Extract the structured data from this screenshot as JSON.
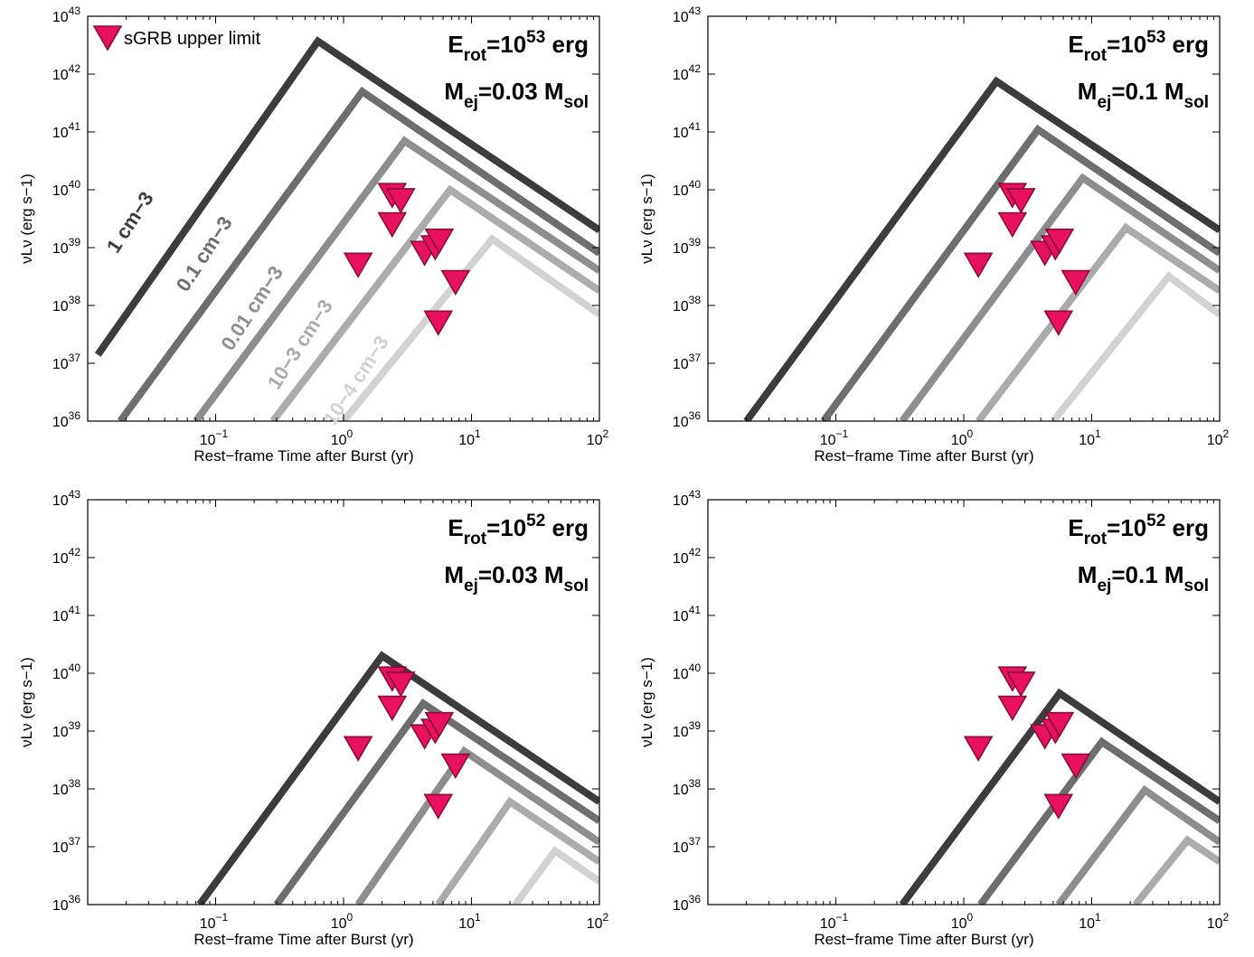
{
  "chart_data": [
    {
      "type": "line",
      "xlabel": "Rest−frame Time after Burst (yr)",
      "ylabel": "νLν (erg s−1)",
      "xscale": "log",
      "yscale": "log",
      "xlim": [
        0.01,
        100
      ],
      "ylim": [
        1e+36,
        1e+43
      ],
      "x_ticks": [
        "10−1",
        "100",
        "101",
        "102"
      ],
      "y_ticks": [
        "1036",
        "1037",
        "1038",
        "1039",
        "1040",
        "1041",
        "1042",
        "1043"
      ],
      "annotation_1": "Erot=1053 erg",
      "annotation_2": "Mej=0.03 Msol",
      "legend": {
        "label": "sGRB upper limit",
        "position": "top-left"
      },
      "series": [
        {
          "name": "1 cm−3",
          "color": "#3c3c3c",
          "x": [
            0.012,
            0.63,
            100
          ],
          "y": [
            1.4e+37,
            3.7e+42,
            2e+39
          ]
        },
        {
          "name": "0.1 cm−3",
          "color": "#6e6e6e",
          "x": [
            0.018,
            1.4,
            100
          ],
          "y": [
            1e+36,
            5e+41,
            8e+38
          ]
        },
        {
          "name": "0.01 cm−3",
          "color": "#8e8e8e",
          "x": [
            0.07,
            3.0,
            100
          ],
          "y": [
            1e+36,
            7e+40,
            4e+38
          ]
        },
        {
          "name": "10−3 cm−3",
          "color": "#ababab",
          "x": [
            0.28,
            6.8,
            100
          ],
          "y": [
            1e+36,
            1e+40,
            1.8e+38
          ]
        },
        {
          "name": "10−4 cm−3",
          "color": "#d2d2d2",
          "x": [
            1.0,
            14.5,
            100
          ],
          "y": [
            1e+36,
            1.4e+39,
            7e+37
          ]
        }
      ],
      "upper_limits": {
        "color": "#e8115f",
        "x": [
          1.3,
          2.4,
          2.8,
          2.4,
          4.3,
          5.2,
          5.6,
          7.5,
          5.5
        ],
        "y": [
          5e+38,
          8e+39,
          6.5e+39,
          2.5e+39,
          8e+38,
          1e+39,
          1.3e+39,
          2.5e+38,
          5e+37
        ]
      }
    },
    {
      "type": "line",
      "xlabel": "Rest−frame Time after Burst (yr)",
      "ylabel": "νLν (erg s−1)",
      "xscale": "log",
      "yscale": "log",
      "xlim": [
        0.01,
        100
      ],
      "ylim": [
        1e+36,
        1e+43
      ],
      "x_ticks": [
        "10−1",
        "100",
        "101",
        "102"
      ],
      "y_ticks": [
        "1036",
        "1037",
        "1038",
        "1039",
        "1040",
        "1041",
        "1042",
        "1043"
      ],
      "annotation_1": "Erot=1053 erg",
      "annotation_2": "Mej=0.1 Msol",
      "series": [
        {
          "color": "#3c3c3c",
          "x": [
            0.02,
            1.8,
            100
          ],
          "y": [
            1e+36,
            7.5e+41,
            2e+39
          ]
        },
        {
          "color": "#6e6e6e",
          "x": [
            0.08,
            3.8,
            100
          ],
          "y": [
            1e+36,
            1.1e+41,
            8e+38
          ]
        },
        {
          "color": "#8e8e8e",
          "x": [
            0.33,
            8.5,
            100
          ],
          "y": [
            1e+36,
            1.6e+40,
            4e+38
          ]
        },
        {
          "color": "#ababab",
          "x": [
            1.3,
            18.5,
            100
          ],
          "y": [
            1e+36,
            2.2e+39,
            1.8e+38
          ]
        },
        {
          "color": "#d2d2d2",
          "x": [
            5.0,
            40,
            100
          ],
          "y": [
            1e+36,
            3.2e+38,
            7e+37
          ]
        }
      ],
      "upper_limits": {
        "color": "#e8115f",
        "x": [
          1.3,
          2.4,
          2.8,
          2.4,
          4.3,
          5.2,
          5.6,
          7.5,
          5.5
        ],
        "y": [
          5e+38,
          8e+39,
          6.5e+39,
          2.5e+39,
          8e+38,
          1e+39,
          1.3e+39,
          2.5e+38,
          5e+37
        ]
      }
    },
    {
      "type": "line",
      "xlabel": "Rest−frame Time after Burst (yr)",
      "ylabel": "νLν (erg s−1)",
      "xscale": "log",
      "yscale": "log",
      "xlim": [
        0.01,
        100
      ],
      "ylim": [
        1e+36,
        1e+43
      ],
      "x_ticks": [
        "10−1",
        "100",
        "101",
        "102"
      ],
      "y_ticks": [
        "1036",
        "1037",
        "1038",
        "1039",
        "1040",
        "1041",
        "1042",
        "1043"
      ],
      "annotation_1": "Erot=1052 erg",
      "annotation_2": "Mej=0.03 Msol",
      "series": [
        {
          "color": "#3c3c3c",
          "x": [
            0.075,
            2.0,
            100
          ],
          "y": [
            1e+36,
            2e+40,
            6e+37
          ]
        },
        {
          "color": "#6e6e6e",
          "x": [
            0.3,
            4.2,
            100
          ],
          "y": [
            1e+36,
            3e+39,
            2.8e+37
          ]
        },
        {
          "color": "#8e8e8e",
          "x": [
            1.3,
            8.8,
            100
          ],
          "y": [
            1e+36,
            4.5e+38,
            1.2e+37
          ]
        },
        {
          "color": "#ababab",
          "x": [
            5.5,
            20,
            100
          ],
          "y": [
            1e+36,
            6e+37,
            5.5e+36
          ]
        },
        {
          "color": "#d2d2d2",
          "x": [
            22,
            45,
            100
          ],
          "y": [
            1e+36,
            8.5e+36,
            2.5e+36
          ]
        }
      ],
      "upper_limits": {
        "color": "#e8115f",
        "x": [
          1.3,
          2.4,
          2.8,
          2.4,
          4.3,
          5.2,
          5.6,
          7.5,
          5.5
        ],
        "y": [
          5e+38,
          8e+39,
          6.5e+39,
          2.5e+39,
          8e+38,
          1e+39,
          1.3e+39,
          2.5e+38,
          5e+37
        ]
      }
    },
    {
      "type": "line",
      "xlabel": "Rest−frame Time after Burst (yr)",
      "ylabel": "νLν (erg s−1)",
      "xscale": "log",
      "yscale": "log",
      "xlim": [
        0.01,
        100
      ],
      "ylim": [
        1e+36,
        1e+43
      ],
      "x_ticks": [
        "10−1",
        "100",
        "101",
        "102"
      ],
      "y_ticks": [
        "1036",
        "1037",
        "1038",
        "1039",
        "1040",
        "1041",
        "1042",
        "1043"
      ],
      "annotation_1": "Erot=1052 erg",
      "annotation_2": "Mej=0.1 Msol",
      "series": [
        {
          "color": "#3c3c3c",
          "x": [
            0.33,
            5.6,
            100
          ],
          "y": [
            1e+36,
            4.5e+39,
            6e+37
          ]
        },
        {
          "color": "#6e6e6e",
          "x": [
            1.35,
            12,
            100
          ],
          "y": [
            1e+36,
            6.5e+38,
            2.8e+37
          ]
        },
        {
          "color": "#8e8e8e",
          "x": [
            5.5,
            26,
            100
          ],
          "y": [
            1e+36,
            9.5e+37,
            1.2e+37
          ]
        },
        {
          "color": "#ababab",
          "x": [
            22,
            56,
            100
          ],
          "y": [
            1e+36,
            1.3e+37,
            5.5e+36
          ]
        }
      ],
      "upper_limits": {
        "color": "#e8115f",
        "x": [
          1.3,
          2.4,
          2.8,
          2.4,
          4.3,
          5.2,
          5.6,
          7.5,
          5.5
        ],
        "y": [
          5e+38,
          8e+39,
          6.5e+39,
          2.5e+39,
          8e+38,
          1e+39,
          1.3e+39,
          2.5e+38,
          5e+37
        ]
      }
    }
  ]
}
